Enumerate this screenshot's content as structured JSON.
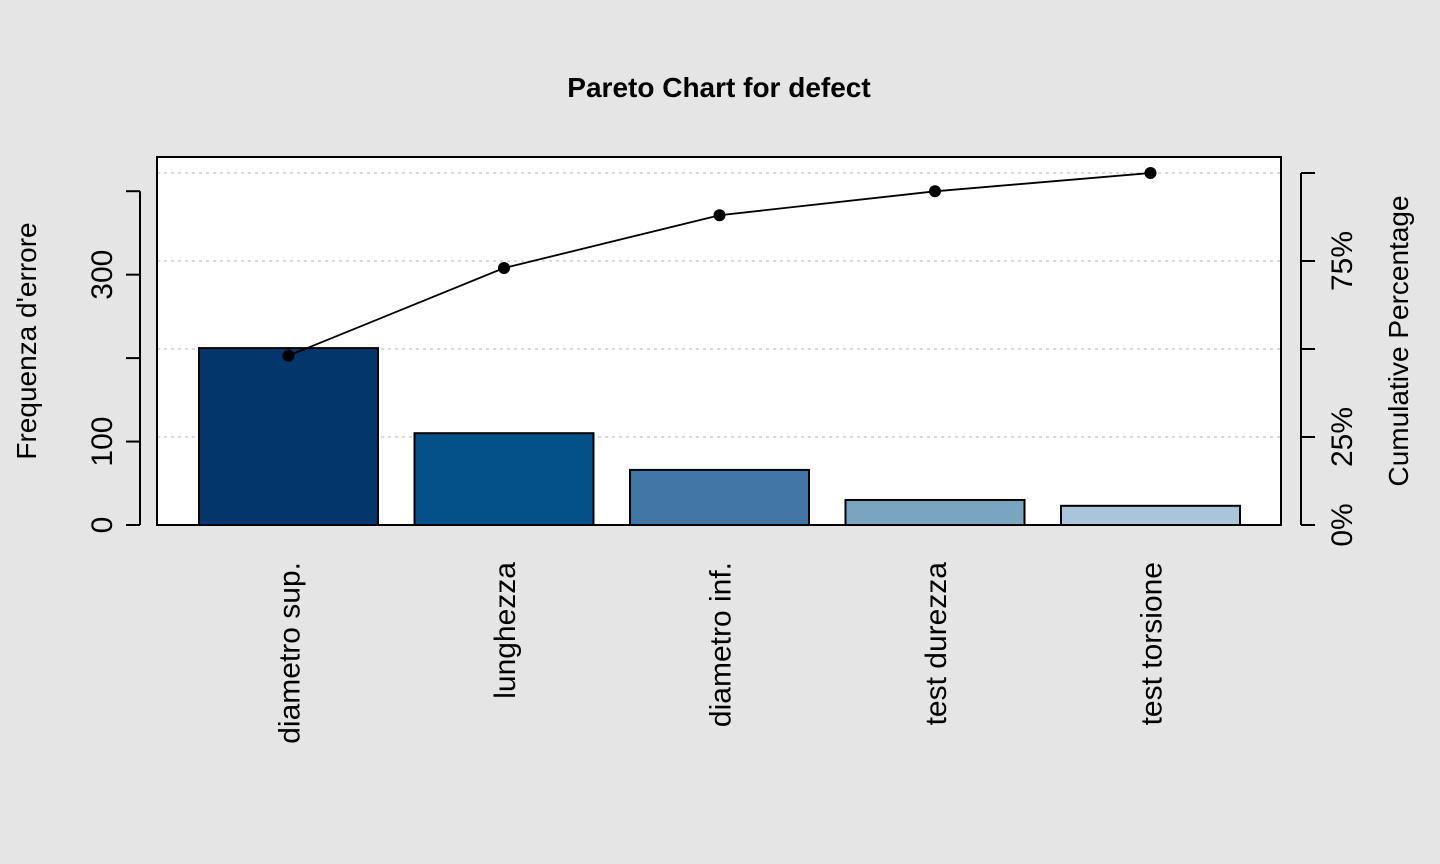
{
  "chart_data": {
    "type": "bar",
    "title": "Pareto Chart for defect",
    "ylabel": "Frequenza d'errore",
    "y2label": "Cumulative Percentage",
    "categories": [
      "diametro sup.",
      "lunghezza",
      "diametro inf.",
      "test durezza",
      "test torsione"
    ],
    "values": [
      212,
      110,
      66,
      30,
      23
    ],
    "cumulative_percent": [
      48.1,
      73.0,
      88.0,
      94.8,
      100.0
    ],
    "ylim": [
      0,
      441
    ],
    "y_ticks": [
      0,
      100,
      300
    ],
    "y_ticks_minor": [
      200,
      400
    ],
    "y2_ticks": [
      0,
      25,
      50,
      75,
      100
    ],
    "y2_tick_labels": [
      "0%",
      "25%",
      "",
      "75%",
      ""
    ],
    "grid": "horizontal dotted at cumulative percentage ticks",
    "bar_colors": [
      "#03366a",
      "#04518a",
      "#4276a6",
      "#7aa5c0",
      "#a9c5dc"
    ],
    "legend": "none"
  }
}
